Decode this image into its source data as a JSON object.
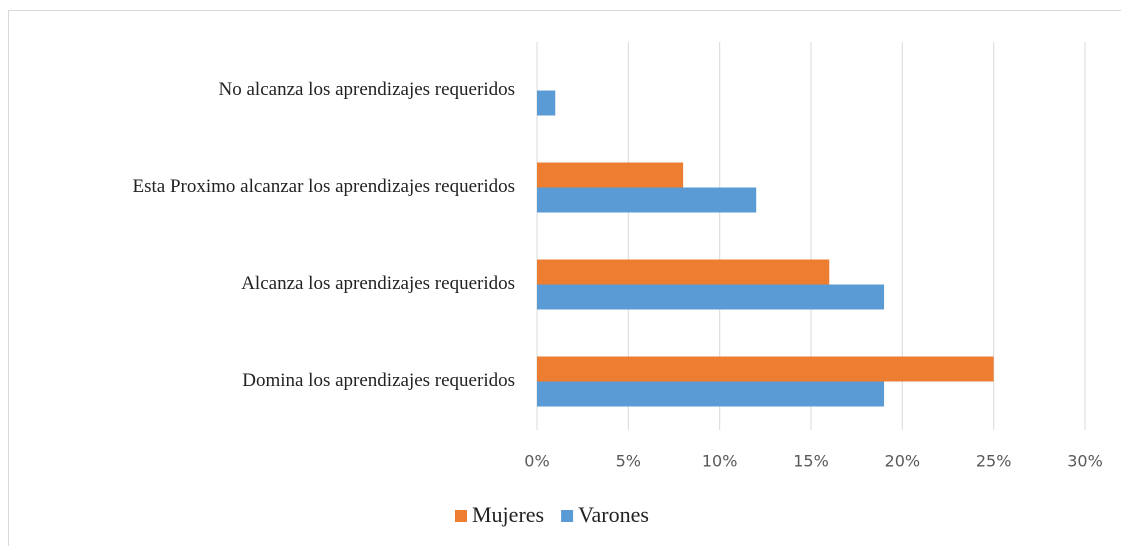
{
  "chart_data": {
    "type": "hbar",
    "categories": [
      "No alcanza los aprendizajes requeridos",
      "Esta Proximo alcanzar los aprendizajes requeridos",
      "Alcanza los aprendizajes requeridos",
      "Domina los aprendizajes requeridos"
    ],
    "series": [
      {
        "name": "Mujeres",
        "color": "#ed7d31",
        "values": [
          0,
          8,
          16,
          25
        ]
      },
      {
        "name": "Varones",
        "color": "#5b9bd5",
        "values": [
          1,
          12,
          19,
          19
        ]
      }
    ],
    "xlim": [
      0,
      30
    ],
    "xticks": [
      {
        "value": 0,
        "label": "0%"
      },
      {
        "value": 5,
        "label": "5%"
      },
      {
        "value": 10,
        "label": "10%"
      },
      {
        "value": 15,
        "label": "15%"
      },
      {
        "value": 20,
        "label": "20%"
      },
      {
        "value": 25,
        "label": "25%"
      },
      {
        "value": 30,
        "label": "30%"
      }
    ],
    "grid": true,
    "legend": "bottom"
  }
}
